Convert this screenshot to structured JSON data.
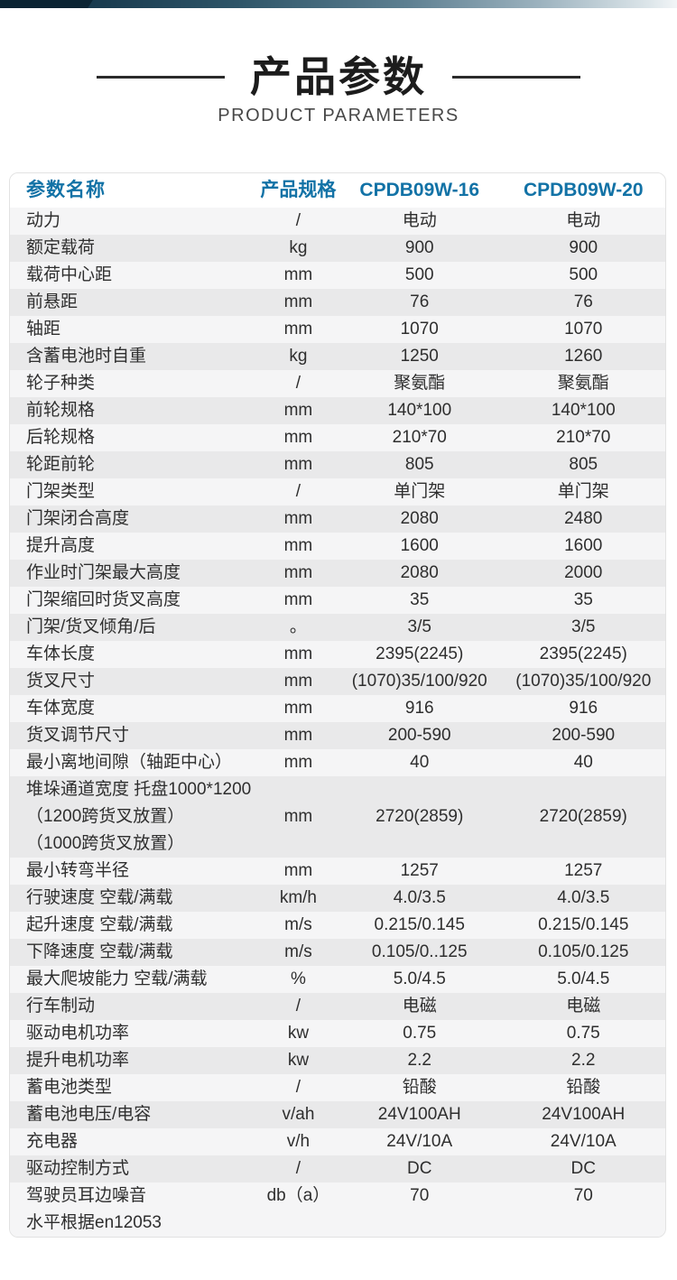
{
  "header": {
    "title_cn": "产品参数",
    "title_en": "PRODUCT PARAMETERS"
  },
  "colors": {
    "header_blue": "#1272a6",
    "row_light": "#f5f5f6",
    "row_dark": "#e9e9ea",
    "topbar_dark": "#0b2433",
    "title_black": "#1c1c1c"
  },
  "table": {
    "columns": [
      "参数名称",
      "产品规格",
      "CPDB09W-16",
      "CPDB09W-20"
    ],
    "rows": [
      {
        "name": "动力",
        "unit": "/",
        "v16": "电动",
        "v20": "电动"
      },
      {
        "name": "额定载荷",
        "unit": "kg",
        "v16": "900",
        "v20": "900"
      },
      {
        "name": "载荷中心距",
        "unit": "mm",
        "v16": "500",
        "v20": "500"
      },
      {
        "name": "前悬距",
        "unit": "mm",
        "v16": "76",
        "v20": "76"
      },
      {
        "name": "轴距",
        "unit": "mm",
        "v16": "1070",
        "v20": "1070"
      },
      {
        "name": "含蓄电池时自重",
        "unit": "kg",
        "v16": "1250",
        "v20": "1260"
      },
      {
        "name": "轮子种类",
        "unit": "/",
        "v16": "聚氨酯",
        "v20": "聚氨酯"
      },
      {
        "name": "前轮规格",
        "unit": "mm",
        "v16": "140*100",
        "v20": "140*100"
      },
      {
        "name": "后轮规格",
        "unit": "mm",
        "v16": "210*70",
        "v20": "210*70"
      },
      {
        "name": "轮距前轮",
        "unit": "mm",
        "v16": "805",
        "v20": "805"
      },
      {
        "name": "门架类型",
        "unit": "/",
        "v16": "单门架",
        "v20": "单门架"
      },
      {
        "name": "门架闭合高度",
        "unit": "mm",
        "v16": "2080",
        "v20": "2480"
      },
      {
        "name": "提升高度",
        "unit": "mm",
        "v16": "1600",
        "v20": "1600"
      },
      {
        "name": "作业时门架最大高度",
        "unit": "mm",
        "v16": "2080",
        "v20": "2000"
      },
      {
        "name": "门架缩回时货叉高度",
        "unit": "mm",
        "v16": "35",
        "v20": "35"
      },
      {
        "name": "门架/货叉倾角/后",
        "unit": "。",
        "v16": "3/5",
        "v20": "3/5"
      },
      {
        "name": "车体长度",
        "unit": "mm",
        "v16": "2395(2245)",
        "v20": "2395(2245)"
      },
      {
        "name": "货叉尺寸",
        "unit": "mm",
        "v16": "(1070)35/100/920",
        "v20": "(1070)35/100/920"
      },
      {
        "name": "车体宽度",
        "unit": "mm",
        "v16": "916",
        "v20": "916"
      },
      {
        "name": "货叉调节尺寸",
        "unit": "mm",
        "v16": "200-590",
        "v20": "200-590"
      },
      {
        "name": "最小离地间隙（轴距中心）",
        "unit": "mm",
        "v16": "40",
        "v20": "40"
      },
      {
        "name": "堆垛通道宽度 托盘1000*1200\n（1200跨货叉放置）\n（1000跨货叉放置）",
        "unit": "mm",
        "v16": "2720(2859)",
        "v20": "2720(2859)"
      },
      {
        "name": "最小转弯半径",
        "unit": "mm",
        "v16": "1257",
        "v20": "1257"
      },
      {
        "name": "行驶速度 空载/满载",
        "unit": "km/h",
        "v16": "4.0/3.5",
        "v20": "4.0/3.5"
      },
      {
        "name": "起升速度 空载/满载",
        "unit": "m/s",
        "v16": "0.215/0.145",
        "v20": "0.215/0.145"
      },
      {
        "name": "下降速度 空载/满载",
        "unit": "m/s",
        "v16": "0.105/0..125",
        "v20": "0.105/0.125"
      },
      {
        "name": "最大爬坡能力 空载/满载",
        "unit": "%",
        "v16": "5.0/4.5",
        "v20": "5.0/4.5"
      },
      {
        "name": "行车制动",
        "unit": "/",
        "v16": "电磁",
        "v20": "电磁"
      },
      {
        "name": "驱动电机功率",
        "unit": "kw",
        "v16": "0.75",
        "v20": "0.75"
      },
      {
        "name": "提升电机功率",
        "unit": "kw",
        "v16": "2.2",
        "v20": "2.2"
      },
      {
        "name": "蓄电池类型",
        "unit": "/",
        "v16": "铅酸",
        "v20": "铅酸"
      },
      {
        "name": "蓄电池电压/电容",
        "unit": "v/ah",
        "v16": "24V100AH",
        "v20": "24V100AH"
      },
      {
        "name": "充电器",
        "unit": "v/h",
        "v16": "24V/10A",
        "v20": "24V/10A"
      },
      {
        "name": "驱动控制方式",
        "unit": "/",
        "v16": "DC",
        "v20": "DC"
      },
      {
        "name": "驾驶员耳边噪音\n水平根据en12053",
        "unit": "db（a）",
        "v16": "70",
        "v20": "70",
        "valign": "top"
      }
    ]
  }
}
